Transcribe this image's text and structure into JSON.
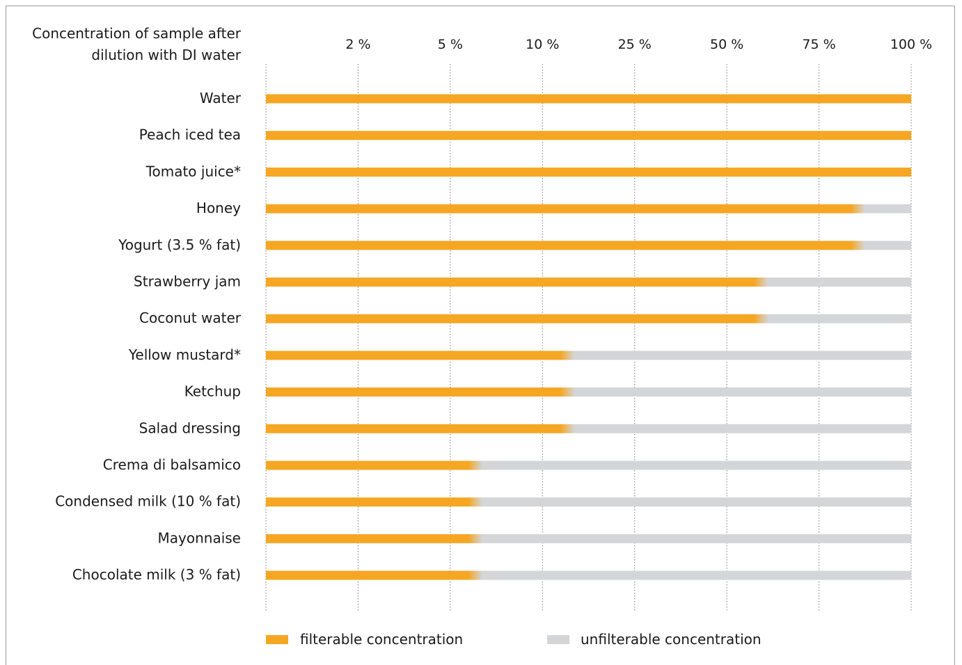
{
  "chart_data": {
    "type": "bar",
    "orientation": "horizontal",
    "title": "",
    "header_label_line1": "Concentration of sample after",
    "header_label_line2": "dilution with DI water",
    "x_ticks": [
      "2 %",
      "5 %",
      "10 %",
      "25 %",
      "50 %",
      "75 %",
      "100 %"
    ],
    "categories": [
      "Water",
      "Peach iced tea",
      "Tomato juice*",
      "Honey",
      "Yogurt (3.5 % fat)",
      "Strawberry jam",
      "Coconut water",
      "Yellow mustard*",
      "Ketchup",
      "Salad dressing",
      "Crema di balsamico",
      "Condensed milk (10 % fat)",
      "Mayonnaise",
      "Chocolate milk (3 % fat)"
    ],
    "filterable_tick_position": [
      7,
      7,
      7,
      6.35,
      6.35,
      5.3,
      5.3,
      3.2,
      3.2,
      3.2,
      2.2,
      2.2,
      2.2,
      2.2
    ],
    "series": [
      {
        "name": "filterable concentration",
        "color": "#f5a623"
      },
      {
        "name": "unfilterable concentration",
        "color": "#d4d5d7"
      }
    ],
    "grid": "vertical dotted at tick positions",
    "legend_placement": "bottom"
  }
}
